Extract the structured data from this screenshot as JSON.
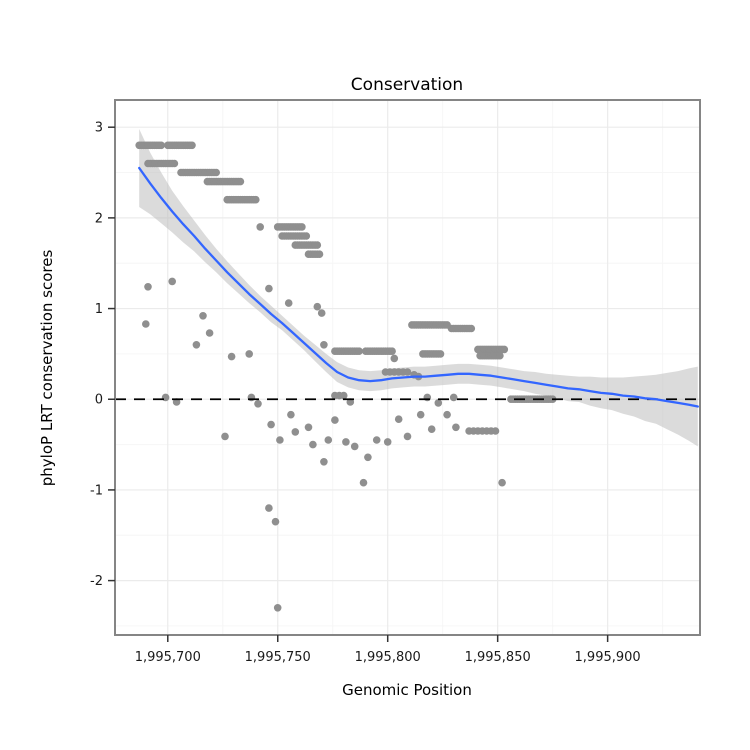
{
  "chart_data": {
    "type": "scatter",
    "title": "Conservation",
    "xlabel": "Genomic Position",
    "ylabel": "phyloP LRT conservation scores",
    "xlim": [
      1995676,
      1995942
    ],
    "ylim": [
      -2.6,
      3.3
    ],
    "grid": true,
    "legend": "none",
    "x_ticks": [
      1995700,
      1995750,
      1995800,
      1995850,
      1995900
    ],
    "x_tick_labels": [
      "1,995,700",
      "1,995,750",
      "1,995,800",
      "1,995,850",
      "1,995,900"
    ],
    "x_minor_ticks": [
      1995725,
      1995775,
      1995825,
      1995875,
      1995925
    ],
    "y_ticks": [
      -2,
      -1,
      0,
      1,
      2,
      3
    ],
    "y_tick_labels": [
      "-2",
      "-1",
      "0",
      "1",
      "2",
      "3"
    ],
    "y_minor_ticks": [
      -2.5,
      -1.5,
      -0.5,
      0.5,
      1.5,
      2.5
    ],
    "reference_line_y": 0,
    "colors": {
      "points": "#8f8f8f",
      "smooth_line": "#3366FF",
      "band": "#b8b8b8",
      "dashed_line": "#000000",
      "panel_border": "#858585",
      "panel_bg": "#ffffff",
      "grid_major": "#ebebeb",
      "grid_minor": "#f6f6f6",
      "tick_mark": "#333333"
    },
    "point_runs": [
      {
        "y": 2.8,
        "from": 1995687,
        "to": 1995697
      },
      {
        "y": 2.8,
        "from": 1995700,
        "to": 1995711
      },
      {
        "y": 2.6,
        "from": 1995691,
        "to": 1995703
      },
      {
        "y": 2.5,
        "from": 1995706,
        "to": 1995722
      },
      {
        "y": 2.4,
        "from": 1995718,
        "to": 1995733
      },
      {
        "y": 2.2,
        "from": 1995727,
        "to": 1995740
      },
      {
        "y": 1.9,
        "from": 1995750,
        "to": 1995761
      },
      {
        "y": 1.8,
        "from": 1995752,
        "to": 1995763
      },
      {
        "y": 1.7,
        "from": 1995758,
        "to": 1995768
      },
      {
        "y": 1.6,
        "from": 1995764,
        "to": 1995769
      },
      {
        "y": 0.53,
        "from": 1995776,
        "to": 1995787
      },
      {
        "y": 0.53,
        "from": 1995790,
        "to": 1995802
      },
      {
        "y": 0.5,
        "from": 1995816,
        "to": 1995824
      },
      {
        "y": 0.82,
        "from": 1995811,
        "to": 1995827
      },
      {
        "y": 0.78,
        "from": 1995829,
        "to": 1995838
      },
      {
        "y": 0.55,
        "from": 1995841,
        "to": 1995853
      },
      {
        "y": 0.48,
        "from": 1995842,
        "to": 1995851
      },
      {
        "y": 0.3,
        "from": 1995799,
        "to": 1995809,
        "step": 2
      },
      {
        "y": 0.0,
        "from": 1995856,
        "to": 1995875
      }
    ],
    "points": [
      [
        1995742,
        1.9
      ],
      [
        1995691,
        1.24
      ],
      [
        1995702,
        1.3
      ],
      [
        1995690,
        0.83
      ],
      [
        1995713,
        0.6
      ],
      [
        1995716,
        0.92
      ],
      [
        1995719,
        0.73
      ],
      [
        1995726,
        -0.41
      ],
      [
        1995729,
        0.47
      ],
      [
        1995737,
        0.5
      ],
      [
        1995699,
        0.02
      ],
      [
        1995704,
        -0.03
      ],
      [
        1995738,
        0.02
      ],
      [
        1995741,
        -0.05
      ],
      [
        1995746,
        1.22
      ],
      [
        1995755,
        1.06
      ],
      [
        1995768,
        1.02
      ],
      [
        1995770,
        0.95
      ],
      [
        1995771,
        0.6
      ],
      [
        1995746,
        -1.2
      ],
      [
        1995749,
        -1.35
      ],
      [
        1995750,
        -2.3
      ],
      [
        1995747,
        -0.28
      ],
      [
        1995751,
        -0.45
      ],
      [
        1995756,
        -0.17
      ],
      [
        1995758,
        -0.36
      ],
      [
        1995764,
        -0.31
      ],
      [
        1995766,
        -0.5
      ],
      [
        1995771,
        -0.69
      ],
      [
        1995773,
        -0.45
      ],
      [
        1995776,
        -0.23
      ],
      [
        1995781,
        -0.47
      ],
      [
        1995785,
        -0.52
      ],
      [
        1995789,
        -0.92
      ],
      [
        1995791,
        -0.64
      ],
      [
        1995795,
        -0.45
      ],
      [
        1995800,
        -0.47
      ],
      [
        1995805,
        -0.22
      ],
      [
        1995809,
        -0.41
      ],
      [
        1995815,
        -0.17
      ],
      [
        1995820,
        -0.33
      ],
      [
        1995827,
        -0.17
      ],
      [
        1995831,
        -0.31
      ],
      [
        1995837,
        -0.35
      ],
      [
        1995839,
        -0.35
      ],
      [
        1995841,
        -0.35
      ],
      [
        1995843,
        -0.35
      ],
      [
        1995845,
        -0.35
      ],
      [
        1995847,
        -0.35
      ],
      [
        1995849,
        -0.35
      ],
      [
        1995852,
        -0.92
      ],
      [
        1995776,
        0.04
      ],
      [
        1995778,
        0.04
      ],
      [
        1995780,
        0.04
      ],
      [
        1995783,
        -0.03
      ],
      [
        1995818,
        0.02
      ],
      [
        1995823,
        -0.04
      ],
      [
        1995830,
        0.02
      ],
      [
        1995803,
        0.45
      ],
      [
        1995812,
        0.27
      ],
      [
        1995814,
        0.25
      ]
    ],
    "smooth": [
      [
        1995687,
        2.55
      ],
      [
        1995692,
        2.38
      ],
      [
        1995697,
        2.22
      ],
      [
        1995702,
        2.07
      ],
      [
        1995707,
        1.93
      ],
      [
        1995712,
        1.8
      ],
      [
        1995717,
        1.66
      ],
      [
        1995722,
        1.53
      ],
      [
        1995727,
        1.4
      ],
      [
        1995732,
        1.28
      ],
      [
        1995737,
        1.16
      ],
      [
        1995742,
        1.05
      ],
      [
        1995747,
        0.94
      ],
      [
        1995752,
        0.84
      ],
      [
        1995757,
        0.73
      ],
      [
        1995762,
        0.62
      ],
      [
        1995767,
        0.51
      ],
      [
        1995772,
        0.4
      ],
      [
        1995777,
        0.3
      ],
      [
        1995782,
        0.24
      ],
      [
        1995787,
        0.21
      ],
      [
        1995792,
        0.2
      ],
      [
        1995797,
        0.21
      ],
      [
        1995802,
        0.23
      ],
      [
        1995807,
        0.24
      ],
      [
        1995812,
        0.25
      ],
      [
        1995817,
        0.25
      ],
      [
        1995822,
        0.26
      ],
      [
        1995827,
        0.27
      ],
      [
        1995832,
        0.28
      ],
      [
        1995837,
        0.28
      ],
      [
        1995842,
        0.27
      ],
      [
        1995847,
        0.26
      ],
      [
        1995852,
        0.24
      ],
      [
        1995857,
        0.22
      ],
      [
        1995862,
        0.2
      ],
      [
        1995867,
        0.18
      ],
      [
        1995872,
        0.16
      ],
      [
        1995877,
        0.14
      ],
      [
        1995882,
        0.12
      ],
      [
        1995887,
        0.11
      ],
      [
        1995892,
        0.09
      ],
      [
        1995897,
        0.07
      ],
      [
        1995902,
        0.06
      ],
      [
        1995907,
        0.04
      ],
      [
        1995912,
        0.03
      ],
      [
        1995917,
        0.01
      ],
      [
        1995922,
        0.0
      ],
      [
        1995927,
        -0.02
      ],
      [
        1995932,
        -0.04
      ],
      [
        1995937,
        -0.06
      ],
      [
        1995941,
        -0.08
      ]
    ],
    "band_upper": [
      [
        1995687,
        2.98
      ],
      [
        1995692,
        2.72
      ],
      [
        1995697,
        2.5
      ],
      [
        1995702,
        2.3
      ],
      [
        1995707,
        2.13
      ],
      [
        1995712,
        1.97
      ],
      [
        1995717,
        1.81
      ],
      [
        1995722,
        1.66
      ],
      [
        1995727,
        1.52
      ],
      [
        1995732,
        1.39
      ],
      [
        1995737,
        1.26
      ],
      [
        1995742,
        1.14
      ],
      [
        1995747,
        1.03
      ],
      [
        1995752,
        0.92
      ],
      [
        1995757,
        0.81
      ],
      [
        1995762,
        0.7
      ],
      [
        1995767,
        0.6
      ],
      [
        1995772,
        0.5
      ],
      [
        1995777,
        0.41
      ],
      [
        1995782,
        0.35
      ],
      [
        1995787,
        0.32
      ],
      [
        1995792,
        0.31
      ],
      [
        1995797,
        0.32
      ],
      [
        1995802,
        0.34
      ],
      [
        1995807,
        0.35
      ],
      [
        1995812,
        0.36
      ],
      [
        1995817,
        0.36
      ],
      [
        1995822,
        0.37
      ],
      [
        1995827,
        0.38
      ],
      [
        1995832,
        0.39
      ],
      [
        1995837,
        0.39
      ],
      [
        1995842,
        0.38
      ],
      [
        1995847,
        0.37
      ],
      [
        1995852,
        0.35
      ],
      [
        1995857,
        0.33
      ],
      [
        1995862,
        0.31
      ],
      [
        1995867,
        0.3
      ],
      [
        1995872,
        0.28
      ],
      [
        1995877,
        0.27
      ],
      [
        1995882,
        0.26
      ],
      [
        1995887,
        0.25
      ],
      [
        1995892,
        0.25
      ],
      [
        1995897,
        0.24
      ],
      [
        1995902,
        0.24
      ],
      [
        1995907,
        0.24
      ],
      [
        1995912,
        0.25
      ],
      [
        1995917,
        0.26
      ],
      [
        1995922,
        0.27
      ],
      [
        1995927,
        0.29
      ],
      [
        1995932,
        0.31
      ],
      [
        1995937,
        0.34
      ],
      [
        1995941,
        0.36
      ]
    ],
    "band_lower": [
      [
        1995687,
        2.12
      ],
      [
        1995692,
        2.04
      ],
      [
        1995697,
        1.94
      ],
      [
        1995702,
        1.84
      ],
      [
        1995707,
        1.73
      ],
      [
        1995712,
        1.63
      ],
      [
        1995717,
        1.51
      ],
      [
        1995722,
        1.4
      ],
      [
        1995727,
        1.28
      ],
      [
        1995732,
        1.17
      ],
      [
        1995737,
        1.06
      ],
      [
        1995742,
        0.96
      ],
      [
        1995747,
        0.85
      ],
      [
        1995752,
        0.76
      ],
      [
        1995757,
        0.65
      ],
      [
        1995762,
        0.54
      ],
      [
        1995767,
        0.42
      ],
      [
        1995772,
        0.3
      ],
      [
        1995777,
        0.19
      ],
      [
        1995782,
        0.13
      ],
      [
        1995787,
        0.1
      ],
      [
        1995792,
        0.09
      ],
      [
        1995797,
        0.1
      ],
      [
        1995802,
        0.12
      ],
      [
        1995807,
        0.13
      ],
      [
        1995812,
        0.14
      ],
      [
        1995817,
        0.14
      ],
      [
        1995822,
        0.15
      ],
      [
        1995827,
        0.16
      ],
      [
        1995832,
        0.17
      ],
      [
        1995837,
        0.17
      ],
      [
        1995842,
        0.16
      ],
      [
        1995847,
        0.15
      ],
      [
        1995852,
        0.13
      ],
      [
        1995857,
        0.11
      ],
      [
        1995862,
        0.09
      ],
      [
        1995867,
        0.06
      ],
      [
        1995872,
        0.04
      ],
      [
        1995877,
        0.01
      ],
      [
        1995882,
        -0.02
      ],
      [
        1995887,
        -0.03
      ],
      [
        1995892,
        -0.07
      ],
      [
        1995897,
        -0.1
      ],
      [
        1995902,
        -0.12
      ],
      [
        1995907,
        -0.16
      ],
      [
        1995912,
        -0.19
      ],
      [
        1995917,
        -0.24
      ],
      [
        1995922,
        -0.27
      ],
      [
        1995927,
        -0.33
      ],
      [
        1995932,
        -0.39
      ],
      [
        1995937,
        -0.46
      ],
      [
        1995941,
        -0.52
      ]
    ]
  }
}
